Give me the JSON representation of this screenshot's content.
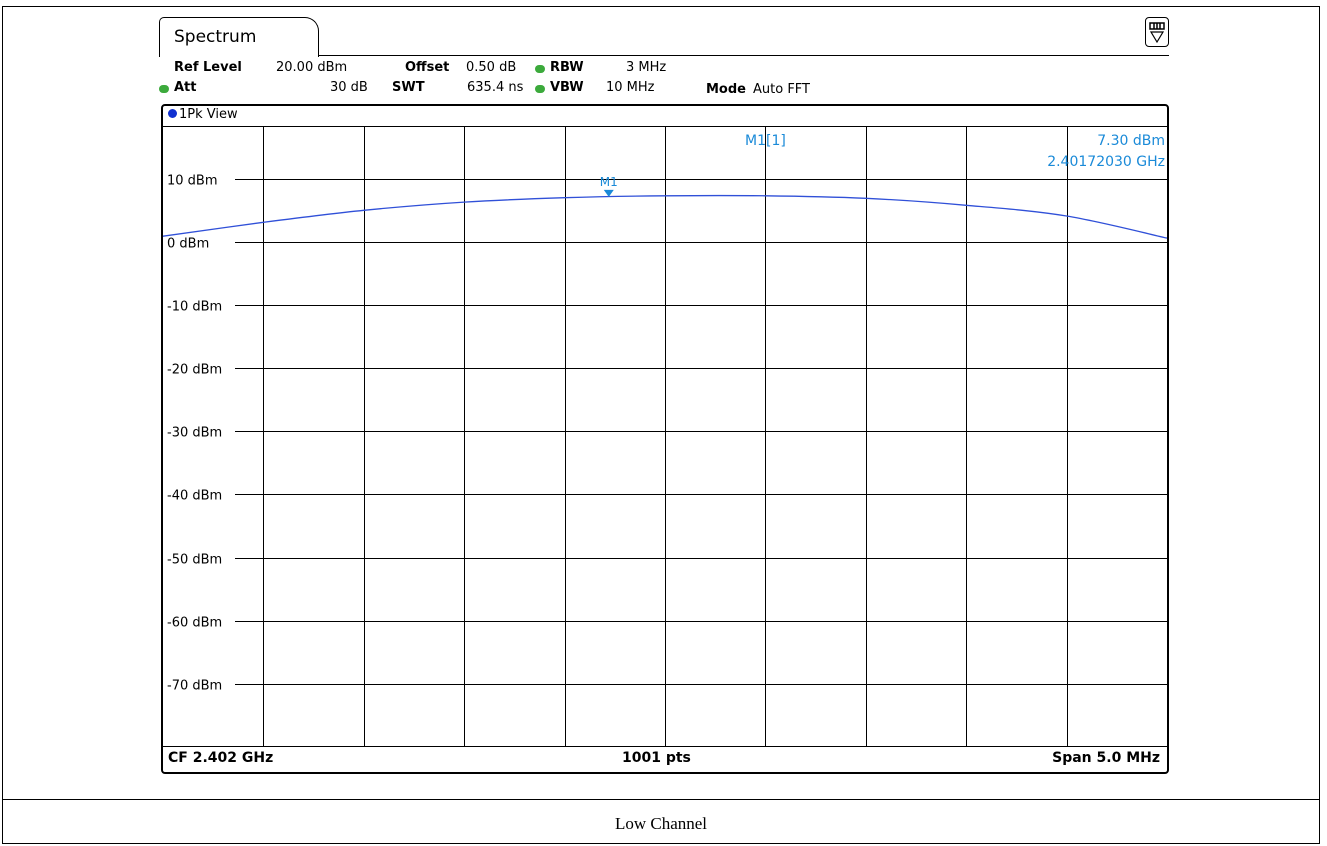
{
  "tab": {
    "title": "Spectrum"
  },
  "header": {
    "ref_level_label": "Ref Level",
    "ref_level_value": "20.00 dBm",
    "offset_label": "Offset",
    "offset_value": "0.50 dB",
    "rbw_label": "RBW",
    "rbw_value": "3 MHz",
    "att_label": "Att",
    "att_value": "30 dB",
    "swt_label": "SWT",
    "swt_value": "635.4 ns",
    "vbw_label": "VBW",
    "vbw_value": "10 MHz",
    "mode_label": "Mode",
    "mode_value": "Auto FFT"
  },
  "view": {
    "label": "1Pk View"
  },
  "marker_info": {
    "name": "M1[1]",
    "level": "7.30 dBm",
    "frequency": "2.40172030 GHz"
  },
  "footer": {
    "center": "CF 2.402 GHz",
    "points": "1001 pts",
    "span": "Span 5.0 MHz"
  },
  "caption": "Low Channel",
  "colors": {
    "trace": "#3050d8",
    "marker": "#1a8ad8",
    "grid": "#000000"
  },
  "icons": {
    "menu": "softkey-menu-icon"
  },
  "chart_data": {
    "type": "line",
    "title": "",
    "xlabel": "",
    "ylabel": "",
    "x_units": "MHz",
    "xlim": [
      2399.5,
      2404.5
    ],
    "ylim": [
      -80,
      18.2
    ],
    "y_ticks": [
      10,
      0,
      -10,
      -20,
      -30,
      -40,
      -50,
      -60,
      -70
    ],
    "y_tick_labels": [
      "10 dBm",
      "0 dBm",
      "-10 dBm",
      "-20 dBm",
      "-30 dBm",
      "-40 dBm",
      "-50 dBm",
      "-60 dBm",
      "-70 dBm"
    ],
    "grid": true,
    "series": [
      {
        "x": [
          2399.5,
          2400.0,
          2400.5,
          2401.0,
          2401.5,
          2402.0,
          2402.5,
          2403.0,
          2403.5,
          2404.0,
          2404.5
        ],
        "values": [
          0.9,
          3.1,
          5.0,
          6.3,
          7.0,
          7.3,
          7.3,
          6.9,
          5.8,
          4.1,
          0.6
        ]
      }
    ],
    "marker": {
      "label": "M1",
      "x": 2401.72,
      "y": 7.3
    }
  }
}
